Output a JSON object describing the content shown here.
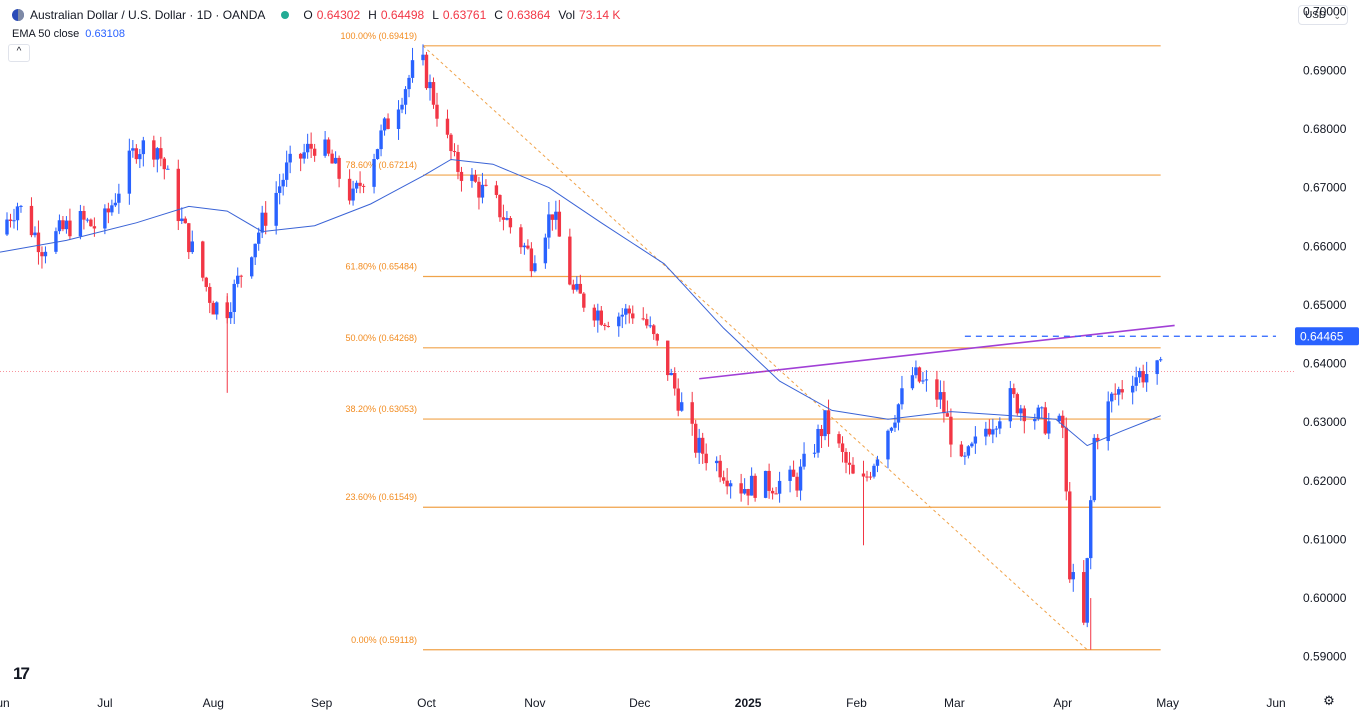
{
  "header": {
    "symbol": "Australian Dollar / U.S. Dollar · 1D · OANDA",
    "ohlc": [
      {
        "key": "O",
        "value": "0.64302"
      },
      {
        "key": "H",
        "value": "0.64498"
      },
      {
        "key": "L",
        "value": "0.63761"
      },
      {
        "key": "C",
        "value": "0.63864"
      },
      {
        "key": "Vol",
        "value": "73.14 K"
      }
    ],
    "indicator_name": "EMA 50 close",
    "indicator_value": "0.63108",
    "collapse_glyph": "^"
  },
  "currency": {
    "label": "USD",
    "chevron": "⌄"
  },
  "logo": "17",
  "settings_icon": "⚙",
  "colors": {
    "up": "#2962ff",
    "down": "#f23645",
    "ema": "#3a63d6",
    "fib": "#f0a34a",
    "trend": "#a13fd6",
    "resistance": "#2962ff",
    "grid": "#f0f3fa",
    "text": "#131722",
    "axis_text": "#131722",
    "fib_text": "#f28b1f"
  },
  "chart_data": {
    "type": "candlestick",
    "title": "Australian Dollar / U.S. Dollar · 1D · OANDA",
    "y_axis": {
      "range": [
        0.585,
        0.702
      ],
      "ticks": [
        "0.70000",
        "0.69000",
        "0.68000",
        "0.67000",
        "0.66000",
        "0.65000",
        "0.64000",
        "0.63000",
        "0.62000",
        "0.61000",
        "0.60000",
        "0.59000"
      ],
      "tick_values": [
        0.7,
        0.69,
        0.68,
        0.67,
        0.66,
        0.65,
        0.64,
        0.63,
        0.62,
        0.61,
        0.6,
        0.59
      ],
      "side": "right"
    },
    "x_axis": {
      "start": "2024-06-01",
      "end": "2025-06-05",
      "labels": [
        {
          "label": "Jun",
          "date": "2024-06-01",
          "bold": false
        },
        {
          "label": "Jul",
          "date": "2024-07-01",
          "bold": false
        },
        {
          "label": "Aug",
          "date": "2024-08-01",
          "bold": false
        },
        {
          "label": "Sep",
          "date": "2024-09-01",
          "bold": false
        },
        {
          "label": "Oct",
          "date": "2024-10-01",
          "bold": false
        },
        {
          "label": "Nov",
          "date": "2024-11-01",
          "bold": false
        },
        {
          "label": "Dec",
          "date": "2024-12-01",
          "bold": false
        },
        {
          "label": "2025",
          "date": "2025-01-01",
          "bold": true
        },
        {
          "label": "Feb",
          "date": "2025-02-01",
          "bold": false
        },
        {
          "label": "Mar",
          "date": "2025-03-01",
          "bold": false
        },
        {
          "label": "Apr",
          "date": "2025-04-01",
          "bold": false
        },
        {
          "label": "May",
          "date": "2025-05-01",
          "bold": false
        },
        {
          "label": "Jun",
          "date": "2025-06-01",
          "bold": false
        }
      ]
    },
    "current_price_label": "0.64465",
    "current_price": 0.64465,
    "last_close": 0.63864,
    "fibonacci": {
      "start_date": "2024-09-30",
      "end_date": "2025-04-29",
      "levels": [
        {
          "label": "100.00% (0.69419)",
          "value": 0.69419
        },
        {
          "label": "78.60% (0.67214)",
          "value": 0.67214
        },
        {
          "label": "61.80% (0.65484)",
          "value": 0.65484
        },
        {
          "label": "50.00% (0.64268)",
          "value": 0.64268
        },
        {
          "label": "38.20% (0.63053)",
          "value": 0.63053
        },
        {
          "label": "23.60% (0.61549)",
          "value": 0.61549
        },
        {
          "label": "0.00% (0.59118)",
          "value": 0.59118
        }
      ],
      "diagonal": {
        "from": {
          "date": "2024-09-30",
          "value": 0.69419
        },
        "to": {
          "date": "2025-04-08",
          "value": 0.59118
        }
      }
    },
    "trendline": {
      "from": {
        "date": "2024-12-18",
        "value": 0.6374
      },
      "to": {
        "date": "2025-05-03",
        "value": 0.6465
      }
    },
    "resistance": {
      "from": {
        "date": "2025-03-04",
        "value": 0.64465
      },
      "to": {
        "date": "2025-06-01",
        "value": 0.64465
      }
    },
    "ema_series": [
      {
        "date": "2024-06-01",
        "value": 0.659
      },
      {
        "date": "2024-06-20",
        "value": 0.661
      },
      {
        "date": "2024-07-10",
        "value": 0.664
      },
      {
        "date": "2024-07-25",
        "value": 0.6668
      },
      {
        "date": "2024-08-05",
        "value": 0.666
      },
      {
        "date": "2024-08-15",
        "value": 0.6625
      },
      {
        "date": "2024-08-30",
        "value": 0.6635
      },
      {
        "date": "2024-09-15",
        "value": 0.6672
      },
      {
        "date": "2024-09-30",
        "value": 0.672
      },
      {
        "date": "2024-10-08",
        "value": 0.6748
      },
      {
        "date": "2024-10-20",
        "value": 0.674
      },
      {
        "date": "2024-11-05",
        "value": 0.67
      },
      {
        "date": "2024-11-20",
        "value": 0.664
      },
      {
        "date": "2024-12-08",
        "value": 0.657
      },
      {
        "date": "2024-12-25",
        "value": 0.646
      },
      {
        "date": "2025-01-10",
        "value": 0.637
      },
      {
        "date": "2025-01-25",
        "value": 0.632
      },
      {
        "date": "2025-02-10",
        "value": 0.6305
      },
      {
        "date": "2025-02-28",
        "value": 0.6318
      },
      {
        "date": "2025-03-15",
        "value": 0.6312
      },
      {
        "date": "2025-03-30",
        "value": 0.6305
      },
      {
        "date": "2025-04-08",
        "value": 0.626
      },
      {
        "date": "2025-04-18",
        "value": 0.6285
      },
      {
        "date": "2025-04-29",
        "value": 0.6311
      }
    ],
    "anchors": [
      {
        "date": "2024-06-01",
        "value": 0.662
      },
      {
        "date": "2024-06-07",
        "value": 0.6672
      },
      {
        "date": "2024-06-14",
        "value": 0.66
      },
      {
        "date": "2024-06-24",
        "value": 0.6645
      },
      {
        "date": "2024-07-01",
        "value": 0.663
      },
      {
        "date": "2024-07-11",
        "value": 0.677
      },
      {
        "date": "2024-07-17",
        "value": 0.677
      },
      {
        "date": "2024-07-24",
        "value": 0.664
      },
      {
        "date": "2024-08-02",
        "value": 0.65
      },
      {
        "date": "2024-08-06",
        "value": 0.6495
      },
      {
        "date": "2024-08-13",
        "value": 0.66
      },
      {
        "date": "2024-08-23",
        "value": 0.673
      },
      {
        "date": "2024-09-01",
        "value": 0.678
      },
      {
        "date": "2024-09-11",
        "value": 0.668
      },
      {
        "date": "2024-09-20",
        "value": 0.68
      },
      {
        "date": "2024-09-30",
        "value": 0.6925
      },
      {
        "date": "2024-10-03",
        "value": 0.687
      },
      {
        "date": "2024-10-10",
        "value": 0.674
      },
      {
        "date": "2024-10-22",
        "value": 0.667
      },
      {
        "date": "2024-11-01",
        "value": 0.658
      },
      {
        "date": "2024-11-07",
        "value": 0.666
      },
      {
        "date": "2024-11-13",
        "value": 0.652
      },
      {
        "date": "2024-11-22",
        "value": 0.648
      },
      {
        "date": "2024-12-02",
        "value": 0.649
      },
      {
        "date": "2024-12-10",
        "value": 0.639
      },
      {
        "date": "2024-12-18",
        "value": 0.626
      },
      {
        "date": "2024-12-24",
        "value": 0.623
      },
      {
        "date": "2024-12-31",
        "value": 0.619
      },
      {
        "date": "2025-01-08",
        "value": 0.6195
      },
      {
        "date": "2025-01-16",
        "value": 0.62
      },
      {
        "date": "2025-01-24",
        "value": 0.63
      },
      {
        "date": "2025-02-03",
        "value": 0.618
      },
      {
        "date": "2025-02-10",
        "value": 0.628
      },
      {
        "date": "2025-02-18",
        "value": 0.638
      },
      {
        "date": "2025-02-26",
        "value": 0.634
      },
      {
        "date": "2025-03-04",
        "value": 0.622
      },
      {
        "date": "2025-03-11",
        "value": 0.629
      },
      {
        "date": "2025-03-18",
        "value": 0.634
      },
      {
        "date": "2025-03-28",
        "value": 0.63
      },
      {
        "date": "2025-04-02",
        "value": 0.629
      },
      {
        "date": "2025-04-04",
        "value": 0.605
      },
      {
        "date": "2025-04-08",
        "value": 0.595
      },
      {
        "date": "2025-04-11",
        "value": 0.627
      },
      {
        "date": "2025-04-16",
        "value": 0.634
      },
      {
        "date": "2025-04-22",
        "value": 0.638
      },
      {
        "date": "2025-04-29",
        "value": 0.6386
      }
    ]
  }
}
